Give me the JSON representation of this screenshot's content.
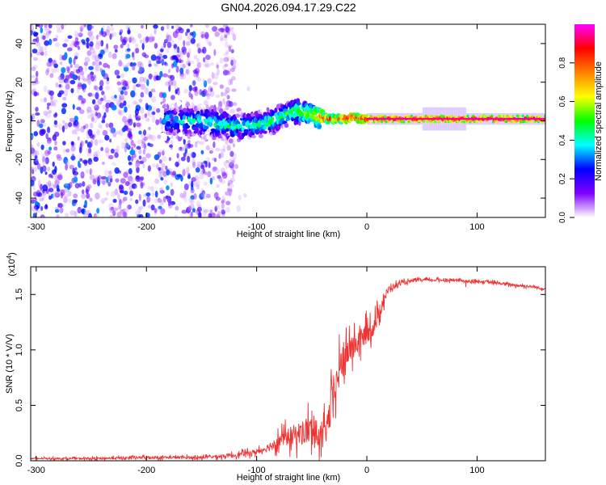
{
  "page_title": "GN04.2026.094.17.29.C22",
  "chart_data": [
    {
      "type": "heatmap",
      "title": "GN04.2026.094.17.29.C22",
      "xlabel": "Height of straight line (km)",
      "ylabel": "Frequency (Hz)",
      "xlim": [
        -305,
        162
      ],
      "ylim": [
        -50,
        50
      ],
      "xticks": [
        -300,
        -200,
        -100,
        0,
        100
      ],
      "yticks": [
        -40,
        -20,
        0,
        20,
        40
      ],
      "colorbar": {
        "label": "Normalized spectral amplitude",
        "range": [
          0,
          1
        ],
        "ticks": [
          "0.0",
          "0.2",
          "0.4",
          "0.6",
          "0.8"
        ],
        "tick_values": [
          0.0,
          0.2,
          0.4,
          0.6,
          0.8
        ],
        "colors": [
          "#ffffff",
          "#8000ff",
          "#0000ff",
          "#00ffff",
          "#00ff00",
          "#ffff00",
          "#ff8000",
          "#ff0000",
          "#ff00ff"
        ]
      },
      "noise_region": {
        "x": [
          -305,
          -120
        ],
        "y": [
          -50,
          50
        ],
        "amplitude": [
          0.0,
          0.3
        ]
      },
      "ridge": {
        "x": [
          -185,
          -160,
          -140,
          -120,
          -100,
          -85,
          -75,
          -65,
          -55,
          -50,
          -42,
          -35,
          -28,
          -20,
          -12,
          -5,
          0,
          20,
          40,
          60,
          80,
          100,
          130,
          162
        ],
        "frequency": [
          0,
          0,
          -1,
          -3,
          -2,
          0,
          3,
          5,
          4,
          3,
          2,
          1,
          1,
          1,
          2,
          1,
          1,
          1,
          1,
          1,
          1,
          1,
          1,
          1
        ],
        "amplitude": [
          0.35,
          0.4,
          0.45,
          0.45,
          0.45,
          0.5,
          0.5,
          0.55,
          0.6,
          0.65,
          0.8,
          0.85,
          0.85,
          0.9,
          0.9,
          0.9,
          0.95,
          0.95,
          0.95,
          0.95,
          0.95,
          0.95,
          0.95,
          0.95
        ]
      }
    },
    {
      "type": "line",
      "xlabel": "Height of straight line (km)",
      "ylabel": "SNR (10 * V/V)",
      "scale_label": "(x10",
      "scale_exp": "4",
      "color": "#ee3333",
      "xlim": [
        -305,
        162
      ],
      "ylim": [
        0,
        1.75
      ],
      "xticks": [
        -300,
        -200,
        -100,
        0,
        100
      ],
      "yticks": [
        "0.0",
        "0.5",
        "1.0",
        "1.5"
      ],
      "ytick_values": [
        0.0,
        0.5,
        1.0,
        1.5
      ],
      "series": [
        {
          "x": [
            -305,
            -250,
            -200,
            -150,
            -120,
            -100,
            -90,
            -80,
            -70,
            -60,
            -50,
            -40,
            -35,
            -30,
            -25,
            -20,
            -15,
            -10,
            -5,
            0,
            5,
            10,
            15,
            20,
            30,
            40,
            50,
            60,
            70,
            80,
            90,
            100,
            110,
            120,
            130,
            140,
            150,
            162
          ],
          "values": [
            0.02,
            0.02,
            0.03,
            0.03,
            0.05,
            0.08,
            0.12,
            0.18,
            0.22,
            0.25,
            0.28,
            0.2,
            0.35,
            0.6,
            0.8,
            0.95,
            1.0,
            1.05,
            1.1,
            1.15,
            1.2,
            1.3,
            1.45,
            1.55,
            1.6,
            1.62,
            1.63,
            1.63,
            1.63,
            1.63,
            1.62,
            1.62,
            1.61,
            1.6,
            1.59,
            1.58,
            1.57,
            1.55
          ],
          "noise": [
            0.01,
            0.015,
            0.02,
            0.02,
            0.03,
            0.04,
            0.06,
            0.1,
            0.14,
            0.18,
            0.22,
            0.18,
            0.25,
            0.25,
            0.25,
            0.22,
            0.2,
            0.18,
            0.16,
            0.15,
            0.14,
            0.12,
            0.1,
            0.05,
            0.03,
            0.02,
            0.02,
            0.02,
            0.02,
            0.02,
            0.02,
            0.02,
            0.02,
            0.02,
            0.02,
            0.02,
            0.02,
            0.02
          ]
        }
      ]
    }
  ]
}
